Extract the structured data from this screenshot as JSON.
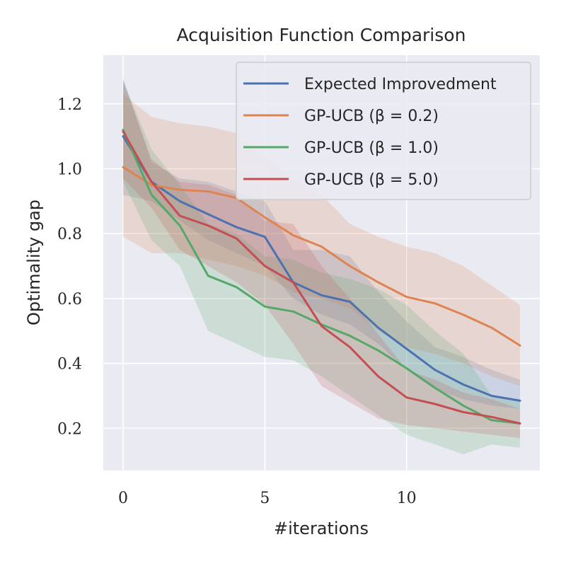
{
  "chart_data": {
    "type": "line",
    "title": "Acquisition Function Comparison",
    "xlabel": "#iterations",
    "ylabel": "Optimality gap",
    "xlim": [
      -0.7,
      14.7
    ],
    "ylim": [
      0.07,
      1.35
    ],
    "xticks": [
      0,
      5,
      10
    ],
    "xtick_labels": [
      "0",
      "5",
      "10"
    ],
    "yticks": [
      0.2,
      0.4,
      0.6,
      0.8,
      1.0,
      1.2
    ],
    "ytick_labels": [
      "0.2",
      "0.4",
      "0.6",
      "0.8",
      "1.0",
      "1.2"
    ],
    "grid": true,
    "legend_position": "top-right",
    "background_color": "#eaeaf2",
    "x": [
      0,
      1,
      2,
      3,
      4,
      5,
      6,
      7,
      8,
      9,
      10,
      11,
      12,
      13,
      14
    ],
    "series": [
      {
        "name": "Expected Improvedment",
        "color": "#4c72b0",
        "values": [
          1.1,
          0.96,
          0.9,
          0.86,
          0.82,
          0.79,
          0.65,
          0.61,
          0.59,
          0.51,
          0.445,
          0.38,
          0.335,
          0.3,
          0.285
        ],
        "lower": [
          0.92,
          0.9,
          0.84,
          0.78,
          0.74,
          0.7,
          0.6,
          0.55,
          0.52,
          0.46,
          0.38,
          0.32,
          0.29,
          0.27,
          0.26
        ],
        "upper": [
          1.28,
          1.02,
          0.97,
          0.96,
          0.93,
          0.9,
          0.75,
          0.75,
          0.73,
          0.62,
          0.53,
          0.45,
          0.42,
          0.38,
          0.35
        ]
      },
      {
        "name": "GP-UCB (β = 0.2)",
        "color": "#dd8452",
        "values": [
          1.005,
          0.95,
          0.935,
          0.93,
          0.91,
          0.85,
          0.795,
          0.76,
          0.7,
          0.65,
          0.605,
          0.585,
          0.55,
          0.51,
          0.455
        ],
        "lower": [
          0.79,
          0.74,
          0.74,
          0.72,
          0.7,
          0.67,
          0.62,
          0.6,
          0.57,
          0.5,
          0.45,
          0.43,
          0.4,
          0.36,
          0.33
        ],
        "upper": [
          1.23,
          1.16,
          1.14,
          1.13,
          1.11,
          1.03,
          0.97,
          0.92,
          0.83,
          0.79,
          0.76,
          0.74,
          0.7,
          0.64,
          0.58
        ]
      },
      {
        "name": "GP-UCB (β = 1.0)",
        "color": "#55a868",
        "values": [
          1.12,
          0.92,
          0.825,
          0.67,
          0.635,
          0.575,
          0.56,
          0.52,
          0.485,
          0.44,
          0.385,
          0.325,
          0.27,
          0.225,
          0.215
        ],
        "lower": [
          0.96,
          0.78,
          0.7,
          0.5,
          0.46,
          0.42,
          0.41,
          0.36,
          0.3,
          0.24,
          0.18,
          0.15,
          0.12,
          0.15,
          0.14
        ],
        "upper": [
          1.27,
          1.06,
          0.95,
          0.83,
          0.8,
          0.73,
          0.72,
          0.68,
          0.66,
          0.63,
          0.58,
          0.5,
          0.43,
          0.3,
          0.29
        ]
      },
      {
        "name": "GP-UCB (β = 5.0)",
        "color": "#c44e52",
        "values": [
          1.115,
          0.96,
          0.855,
          0.825,
          0.785,
          0.7,
          0.65,
          0.515,
          0.45,
          0.36,
          0.295,
          0.275,
          0.25,
          0.235,
          0.215
        ],
        "lower": [
          0.97,
          0.88,
          0.75,
          0.7,
          0.65,
          0.58,
          0.46,
          0.33,
          0.28,
          0.23,
          0.21,
          0.2,
          0.19,
          0.18,
          0.17
        ],
        "upper": [
          1.27,
          1.03,
          0.96,
          0.95,
          0.92,
          0.84,
          0.83,
          0.7,
          0.6,
          0.49,
          0.38,
          0.35,
          0.31,
          0.29,
          0.26
        ]
      }
    ]
  }
}
